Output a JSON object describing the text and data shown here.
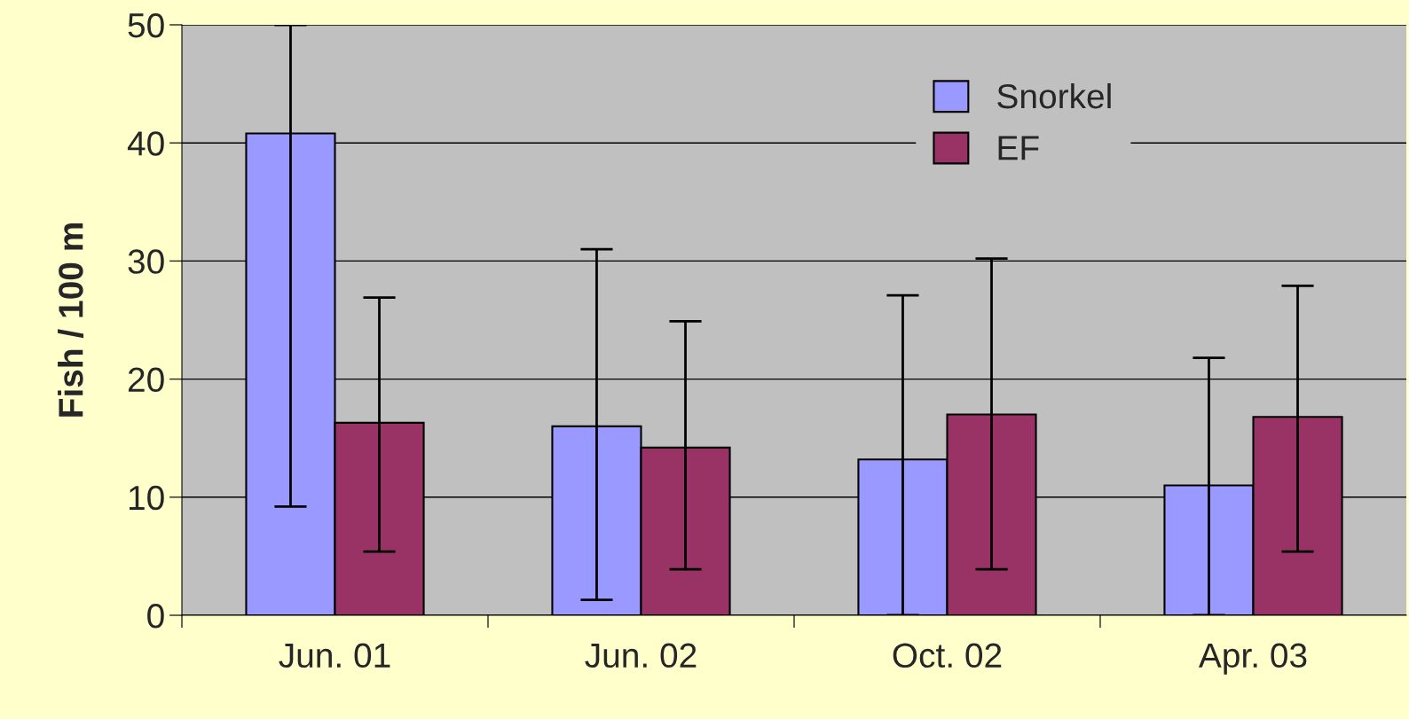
{
  "chart_data": {
    "type": "bar",
    "ylabel": "Fish / 100 m",
    "categories": [
      "Jun. 01",
      "Jun. 02",
      "Oct. 02",
      "Apr. 03"
    ],
    "series": [
      {
        "name": "Snorkel",
        "color": "#9999ff",
        "values": [
          40.8,
          16.0,
          13.2,
          11.0
        ],
        "errors": [
          [
            9.2,
            50
          ],
          [
            1.3,
            31.0
          ],
          [
            0,
            27.1
          ],
          [
            0,
            21.8
          ]
        ]
      },
      {
        "name": "EF",
        "color": "#993366",
        "values": [
          16.3,
          14.2,
          17.0,
          16.8
        ],
        "errors": [
          [
            5.4,
            26.9
          ],
          [
            3.9,
            24.9
          ],
          [
            3.9,
            30.2
          ],
          [
            5.4,
            27.9
          ]
        ]
      }
    ],
    "ylim": [
      0,
      50
    ],
    "yticks": [
      0,
      10,
      20,
      30,
      40,
      50
    ],
    "grid": "y",
    "legend": "top right"
  }
}
